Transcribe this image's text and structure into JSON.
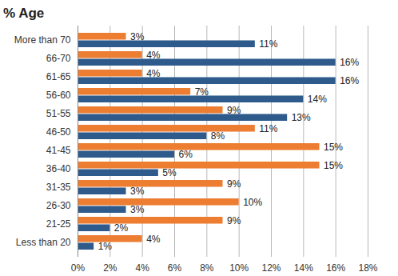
{
  "chart_data": {
    "type": "bar",
    "title": "% Age",
    "orientation": "horizontal",
    "categories": [
      "More than 70",
      "66-70",
      "61-65",
      "56-60",
      "51-55",
      "46-50",
      "41-45",
      "36-40",
      "31-35",
      "26-30",
      "21-25",
      "Less than 20"
    ],
    "series": [
      {
        "color": "#ED7D31",
        "values": [
          3,
          4,
          4,
          7,
          9,
          11,
          15,
          15,
          9,
          10,
          9,
          4
        ],
        "value_labels": [
          "3%",
          "4%",
          "4%",
          "7%",
          "9%",
          "11%",
          "15%",
          "15%",
          "9%",
          "10%",
          "9%",
          "4%"
        ]
      },
      {
        "color": "#2E5B8C",
        "values": [
          11,
          16,
          16,
          14,
          13,
          8,
          6,
          5,
          3,
          3,
          2,
          1
        ],
        "value_labels": [
          "11%",
          "16%",
          "16%",
          "14%",
          "13%",
          "8%",
          "6%",
          "5%",
          "3%",
          "3%",
          "2%",
          "1%"
        ]
      }
    ],
    "xlim": [
      0,
      18
    ],
    "xticks": [
      {
        "value": 0,
        "label": "0%"
      },
      {
        "value": 2,
        "label": "2%"
      },
      {
        "value": 4,
        "label": "4%"
      },
      {
        "value": 6,
        "label": "6%"
      },
      {
        "value": 8,
        "label": "8%"
      },
      {
        "value": 10,
        "label": "10%"
      },
      {
        "value": 12,
        "label": "12%"
      },
      {
        "value": 14,
        "label": "14%"
      },
      {
        "value": 16,
        "label": "16%"
      },
      {
        "value": 18,
        "label": "18%"
      }
    ],
    "grid": true,
    "data_labels": true
  }
}
